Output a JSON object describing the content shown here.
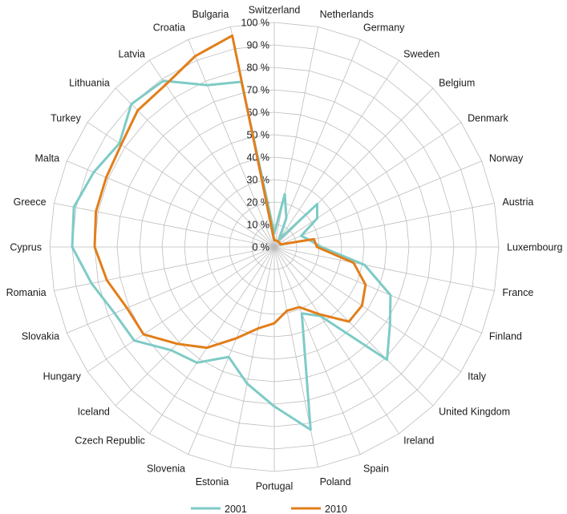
{
  "chart_data": {
    "type": "radar",
    "title": "",
    "categories": [
      "Switzerland",
      "Netherlands",
      "Germany",
      "Sweden",
      "Belgium",
      "Denmark",
      "Norway",
      "Austria",
      "Luxembourg",
      "France",
      "Finland",
      "Italy",
      "United Kingdom",
      "Ireland",
      "Spain",
      "Poland",
      "Portugal",
      "Estonia",
      "Slovenia",
      "Czech Republic",
      "Iceland",
      "Hungary",
      "Slovakia",
      "Romania",
      "Cyprus",
      "Greece",
      "Malta",
      "Turkey",
      "Lithuania",
      "Latvia",
      "Croatia",
      "Bulgaria"
    ],
    "ticks": [
      "0 %",
      "10 %",
      "20 %",
      "30 %",
      "40 %",
      "50 %",
      "60 %",
      "70 %",
      "80 %",
      "90 %",
      "100 %"
    ],
    "rlim": [
      0,
      100
    ],
    "grid": true,
    "legend_position": "bottom",
    "series": [
      {
        "name": "2001",
        "color": "#7ecbc6",
        "values": [
          6,
          24,
          14,
          4,
          27,
          23,
          13,
          16,
          21,
          41,
          56,
          62,
          71,
          37,
          32,
          83,
          71,
          62,
          53,
          62,
          65,
          75,
          77,
          83,
          90,
          91,
          87,
          83,
          90,
          89,
          78,
          75
        ]
      },
      {
        "name": "2010",
        "color": "#e27e1a",
        "values": [
          3,
          3,
          3,
          3,
          3,
          3,
          3,
          18,
          19,
          36,
          44,
          47,
          47,
          36,
          29,
          29,
          34,
          37,
          44,
          54,
          61,
          70,
          71,
          76,
          80,
          81,
          81,
          82,
          86,
          87,
          92,
          96
        ]
      }
    ]
  }
}
